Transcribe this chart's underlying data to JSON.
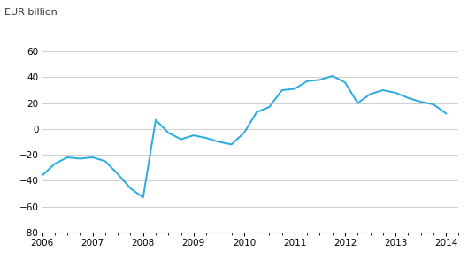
{
  "ylabel": "EUR billion",
  "line_color": "#29ABE2",
  "bg_color": "#ffffff",
  "grid_color": "#c8c8c8",
  "ylim": [
    -80,
    75
  ],
  "yticks": [
    -80,
    -60,
    -40,
    -20,
    0,
    20,
    40,
    60
  ],
  "xlim_start": 2006.0,
  "xlim_end": 2014.25,
  "xtick_labels": [
    "2006",
    "2007",
    "2008",
    "2009",
    "2010",
    "2011",
    "2012",
    "2013",
    "2014"
  ],
  "xtick_positions": [
    2006,
    2007,
    2008,
    2009,
    2010,
    2011,
    2012,
    2013,
    2014
  ],
  "quarters": [
    2006.0,
    2006.25,
    2006.5,
    2006.75,
    2007.0,
    2007.25,
    2007.5,
    2007.75,
    2008.0,
    2008.25,
    2008.5,
    2008.75,
    2009.0,
    2009.25,
    2009.5,
    2009.75,
    2010.0,
    2010.25,
    2010.5,
    2010.75,
    2011.0,
    2011.25,
    2011.5,
    2011.75,
    2012.0,
    2012.25,
    2012.5,
    2012.75,
    2013.0,
    2013.25,
    2013.5,
    2013.75,
    2014.0
  ],
  "values": [
    -36,
    -27,
    -22,
    -23,
    -22,
    -25,
    -35,
    -46,
    -53,
    7,
    -3,
    -8,
    -5,
    -7,
    -10,
    -12,
    -3,
    13,
    17,
    30,
    31,
    37,
    38,
    41,
    36,
    20,
    27,
    30,
    28,
    24,
    21,
    19,
    12
  ],
  "line_width": 1.4,
  "tick_label_size": 7.5,
  "ylabel_size": 8,
  "spine_color": "#aaaaaa"
}
